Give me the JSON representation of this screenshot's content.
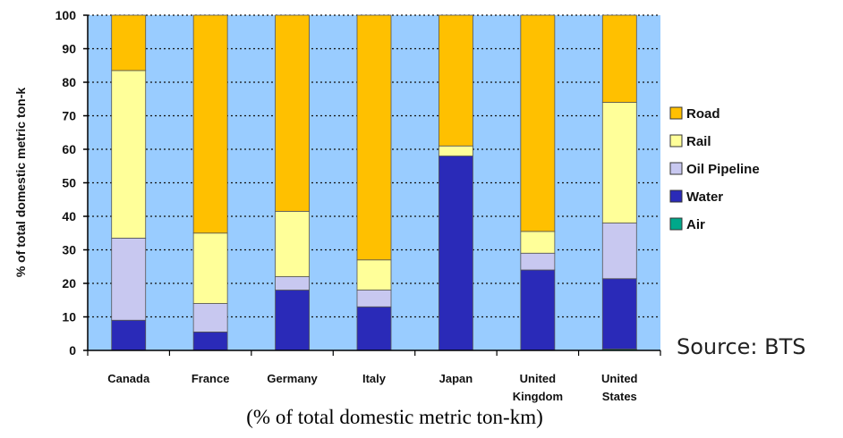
{
  "source_note": "Source: BTS",
  "caption": "(% of total domestic metric ton-km)",
  "chart_data": {
    "type": "bar",
    "stacked": true,
    "title": "",
    "xlabel": "",
    "ylabel": "% of total domestic metric ton-k",
    "ylim": [
      0,
      100
    ],
    "yticks": [
      0,
      10,
      20,
      30,
      40,
      50,
      60,
      70,
      80,
      90,
      100
    ],
    "grid": true,
    "legend_position": "right",
    "categories": [
      [
        "Canada"
      ],
      [
        "France"
      ],
      [
        "Germany"
      ],
      [
        "Italy"
      ],
      [
        "Japan"
      ],
      [
        "United",
        "Kingdom"
      ],
      [
        "United",
        "States"
      ]
    ],
    "series": [
      {
        "name": "Air",
        "color": "#00a88a",
        "values": [
          0,
          0,
          0,
          0,
          0,
          0,
          0.4
        ]
      },
      {
        "name": "Water",
        "color": "#2a2ab8",
        "values": [
          9,
          5.5,
          18,
          13,
          58,
          24,
          21
        ]
      },
      {
        "name": "Oil Pipeline",
        "color": "#c8c8f0",
        "values": [
          24.5,
          8.5,
          4,
          5,
          0,
          5,
          16.6
        ]
      },
      {
        "name": "Rail",
        "color": "#ffff99",
        "values": [
          50,
          21,
          19.5,
          9,
          3,
          6.5,
          36
        ]
      },
      {
        "name": "Road",
        "color": "#ffc000",
        "values": [
          16.5,
          65,
          58.5,
          73,
          39,
          64.5,
          26
        ]
      }
    ],
    "legend_order": [
      "Road",
      "Rail",
      "Oil Pipeline",
      "Water",
      "Air"
    ],
    "plot_background": "#99ccff"
  }
}
